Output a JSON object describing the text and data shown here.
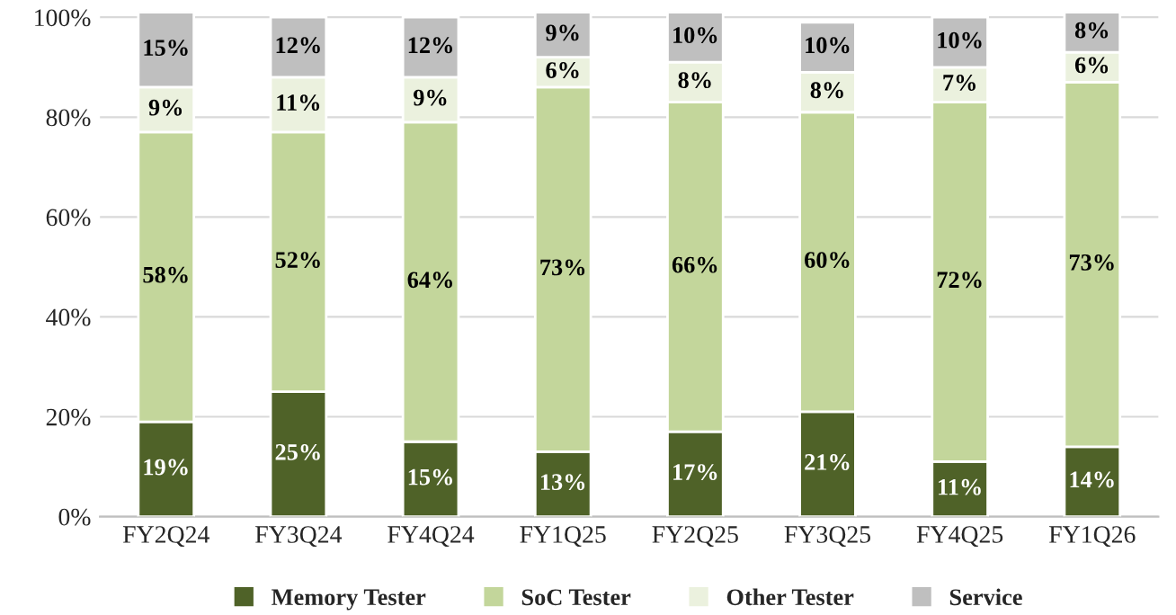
{
  "chart_data": {
    "type": "bar",
    "stacked": true,
    "categories": [
      "FY2Q24",
      "FY3Q24",
      "FY4Q24",
      "FY1Q25",
      "FY2Q25",
      "FY3Q25",
      "FY4Q25",
      "FY1Q26"
    ],
    "series": [
      {
        "name": "Memory Tester",
        "color": "#4f6228",
        "values": [
          19,
          25,
          15,
          13,
          17,
          21,
          11,
          14
        ],
        "value_labels": [
          "19%",
          "25%",
          "15%",
          "13%",
          "17%",
          "21%",
          "11%",
          "14%"
        ]
      },
      {
        "name": "SoC Tester",
        "color": "#c3d69b",
        "values": [
          58,
          52,
          64,
          73,
          66,
          60,
          72,
          73
        ],
        "value_labels": [
          "58%",
          "52%",
          "64%",
          "73%",
          "66%",
          "60%",
          "72%",
          "73%"
        ]
      },
      {
        "name": "Other Tester",
        "color": "#ebf1de",
        "values": [
          9,
          11,
          9,
          6,
          8,
          8,
          7,
          6
        ],
        "value_labels": [
          "9%",
          "11%",
          "9%",
          "6%",
          "8%",
          "8%",
          "7%",
          "6%"
        ]
      },
      {
        "name": "Service",
        "color": "#bfbfbf",
        "values": [
          15,
          12,
          12,
          9,
          10,
          10,
          10,
          8
        ],
        "value_labels": [
          "15%",
          "12%",
          "12%",
          "9%",
          "10%",
          "10%",
          "10%",
          "8%"
        ]
      }
    ],
    "ylim": [
      0,
      101
    ],
    "yticks": [
      {
        "value": 0,
        "label": "0%"
      },
      {
        "value": 20,
        "label": "20%"
      },
      {
        "value": 40,
        "label": "40%"
      },
      {
        "value": 60,
        "label": "60%"
      },
      {
        "value": 80,
        "label": "80%"
      },
      {
        "value": 100,
        "label": "100%"
      }
    ],
    "grid": "y",
    "legend": "bottom"
  }
}
